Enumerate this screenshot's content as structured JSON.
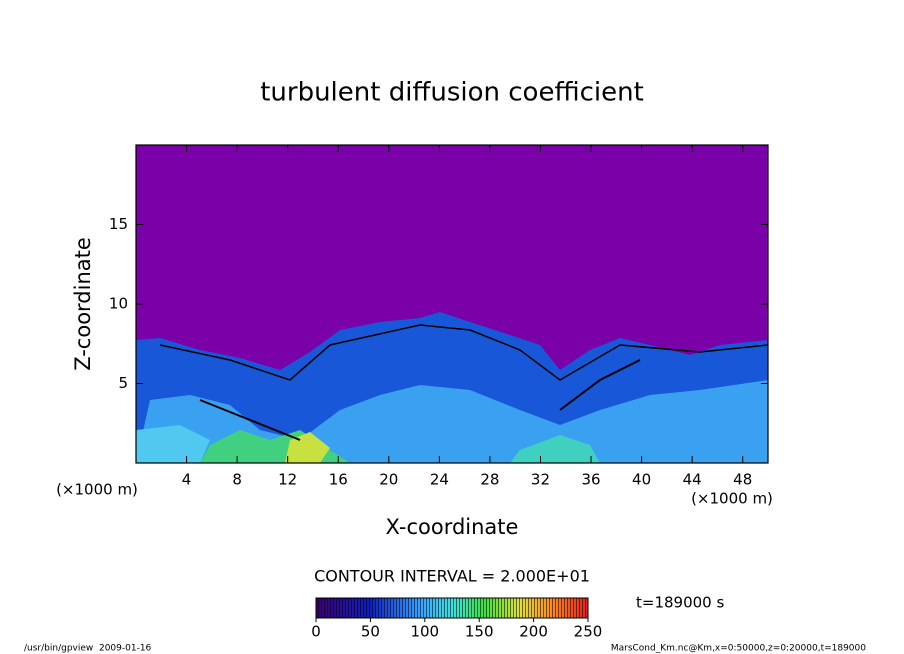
{
  "chart_data": {
    "type": "contour",
    "title": "turbulent diffusion coefficient",
    "x_label": "X-coordinate",
    "y_label": "Z-coordinate",
    "x_unit": "(×1000 m)",
    "y_unit": "(×1000 m)",
    "xlim": [
      0,
      50
    ],
    "xticks": [
      4,
      8,
      12,
      16,
      20,
      24,
      28,
      32,
      36,
      40,
      44,
      48
    ],
    "ylim": [
      0,
      20
    ],
    "yticks": [
      5,
      10,
      15
    ],
    "contour_interval": "CONTOUR INTERVAL = 2.000E+01",
    "time": "t=189000 s",
    "colorbar": {
      "lim": [
        0,
        250
      ],
      "ticks": [
        0,
        50,
        100,
        150,
        200,
        250
      ]
    },
    "footer_left": "/usr/bin/gpview  2009-01-16",
    "footer_right": "MarsCond_Km.nc@Km,x=0:50000,z=0:20000,t=189000"
  }
}
